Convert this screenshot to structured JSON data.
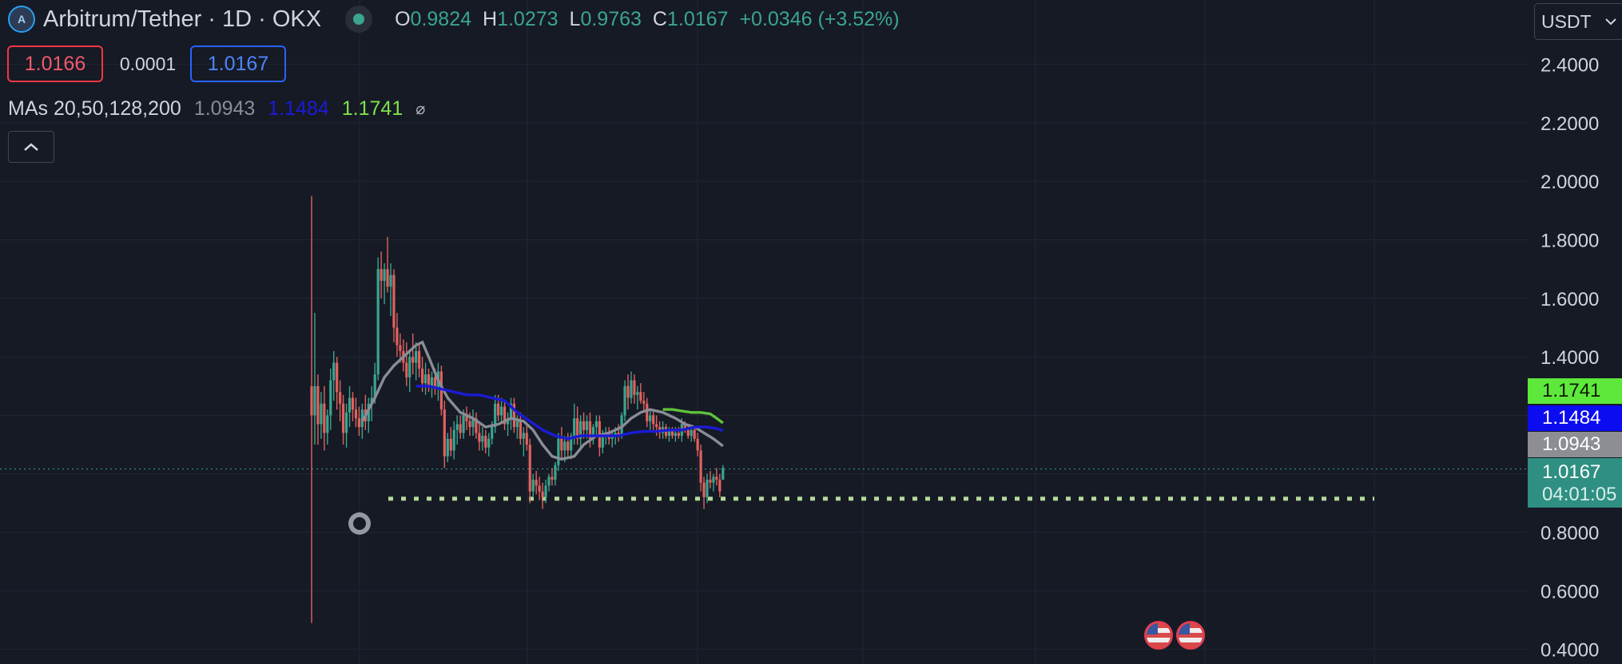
{
  "header": {
    "symbol": "Arbitrum/Tether · 1D · OKX",
    "open_label": "O",
    "open_value": "0.9824",
    "high_label": "H",
    "high_value": "1.0273",
    "low_label": "L",
    "low_value": "0.9763",
    "close_label": "C",
    "close_value": "1.0167",
    "change": "+0.0346 (+3.52%)"
  },
  "quote": {
    "bid": "1.0166",
    "spread": "0.0001",
    "ask": "1.0167"
  },
  "indicator": {
    "label": "MAs 20,50,128,200",
    "ma20_value": "1.0943",
    "ma50_value": "1.1484",
    "ma128_value": "1.1741",
    "visibility_icon": "eye-off-icon"
  },
  "currency_selector": {
    "value": "USDT"
  },
  "price_axis": {
    "ticks": [
      "2.4000",
      "2.2000",
      "2.0000",
      "1.8000",
      "1.6000",
      "1.4000",
      "0.8000",
      "0.6000",
      "0.4000"
    ]
  },
  "price_tags": {
    "ma_green": "1.1741",
    "ma_blue": "1.1484",
    "ma_gray": "1.0943",
    "last_price": "1.0167",
    "countdown": "04:01:05"
  },
  "colors": {
    "background": "#161a25",
    "up": "#3aa590",
    "down": "#e0625e",
    "ma20": "#8a8d96",
    "ma50": "#1b1bd6",
    "ma128": "#5fc33a",
    "support_line": "#b5d99c"
  },
  "icons": {
    "alarm": "alarm-clock-icon",
    "events": "us-flag-icon",
    "collapse": "chevron-up-icon",
    "dropdown": "chevron-down-icon"
  },
  "chart_data": {
    "type": "candlestick",
    "interval": "1D",
    "ylim": [
      0.35,
      2.62
    ],
    "last_price": 1.0167,
    "support_level": 0.915,
    "candles": [
      [
        1.3,
        1.95,
        0.49,
        1.2
      ],
      [
        1.2,
        1.55,
        1.1,
        1.3
      ],
      [
        1.3,
        1.34,
        1.1,
        1.17
      ],
      [
        1.17,
        1.28,
        1.12,
        1.24
      ],
      [
        1.24,
        1.3,
        1.08,
        1.14
      ],
      [
        1.14,
        1.22,
        1.1,
        1.2
      ],
      [
        1.2,
        1.36,
        1.15,
        1.32
      ],
      [
        1.32,
        1.42,
        1.25,
        1.38
      ],
      [
        1.38,
        1.4,
        1.22,
        1.28
      ],
      [
        1.28,
        1.32,
        1.18,
        1.24
      ],
      [
        1.24,
        1.27,
        1.1,
        1.14
      ],
      [
        1.14,
        1.24,
        1.09,
        1.21
      ],
      [
        1.21,
        1.3,
        1.16,
        1.26
      ],
      [
        1.26,
        1.28,
        1.18,
        1.22
      ],
      [
        1.22,
        1.26,
        1.16,
        1.19
      ],
      [
        1.19,
        1.23,
        1.13,
        1.16
      ],
      [
        1.16,
        1.24,
        1.12,
        1.22
      ],
      [
        1.22,
        1.27,
        1.15,
        1.18
      ],
      [
        1.18,
        1.26,
        1.14,
        1.24
      ],
      [
        1.24,
        1.3,
        1.18,
        1.26
      ],
      [
        1.26,
        1.38,
        1.24,
        1.34
      ],
      [
        1.34,
        1.74,
        1.32,
        1.7
      ],
      [
        1.7,
        1.76,
        1.6,
        1.66
      ],
      [
        1.66,
        1.72,
        1.58,
        1.7
      ],
      [
        1.7,
        1.81,
        1.62,
        1.64
      ],
      [
        1.64,
        1.72,
        1.54,
        1.68
      ],
      [
        1.68,
        1.7,
        1.45,
        1.5
      ],
      [
        1.5,
        1.55,
        1.4,
        1.44
      ],
      [
        1.44,
        1.48,
        1.38,
        1.42
      ],
      [
        1.42,
        1.46,
        1.35,
        1.38
      ],
      [
        1.38,
        1.45,
        1.3,
        1.33
      ],
      [
        1.33,
        1.42,
        1.28,
        1.4
      ],
      [
        1.4,
        1.48,
        1.34,
        1.38
      ],
      [
        1.38,
        1.45,
        1.32,
        1.42
      ],
      [
        1.42,
        1.44,
        1.33,
        1.36
      ],
      [
        1.36,
        1.4,
        1.28,
        1.31
      ],
      [
        1.31,
        1.38,
        1.27,
        1.34
      ],
      [
        1.34,
        1.36,
        1.28,
        1.3
      ],
      [
        1.3,
        1.35,
        1.26,
        1.33
      ],
      [
        1.33,
        1.36,
        1.27,
        1.29
      ],
      [
        1.29,
        1.38,
        1.25,
        1.35
      ],
      [
        1.35,
        1.37,
        1.2,
        1.22
      ],
      [
        1.22,
        1.25,
        1.02,
        1.06
      ],
      [
        1.06,
        1.14,
        1.04,
        1.12
      ],
      [
        1.12,
        1.16,
        1.06,
        1.08
      ],
      [
        1.08,
        1.18,
        1.05,
        1.15
      ],
      [
        1.15,
        1.2,
        1.1,
        1.17
      ],
      [
        1.17,
        1.2,
        1.12,
        1.14
      ],
      [
        1.14,
        1.22,
        1.12,
        1.2
      ],
      [
        1.2,
        1.23,
        1.15,
        1.18
      ],
      [
        1.18,
        1.21,
        1.13,
        1.16
      ],
      [
        1.16,
        1.22,
        1.13,
        1.19
      ],
      [
        1.19,
        1.21,
        1.12,
        1.14
      ],
      [
        1.14,
        1.17,
        1.08,
        1.11
      ],
      [
        1.11,
        1.16,
        1.08,
        1.13
      ],
      [
        1.13,
        1.15,
        1.07,
        1.09
      ],
      [
        1.09,
        1.14,
        1.06,
        1.12
      ],
      [
        1.12,
        1.18,
        1.1,
        1.16
      ],
      [
        1.16,
        1.27,
        1.14,
        1.24
      ],
      [
        1.24,
        1.27,
        1.18,
        1.2
      ],
      [
        1.2,
        1.26,
        1.17,
        1.23
      ],
      [
        1.23,
        1.25,
        1.15,
        1.17
      ],
      [
        1.17,
        1.21,
        1.13,
        1.19
      ],
      [
        1.19,
        1.26,
        1.15,
        1.24
      ],
      [
        1.24,
        1.26,
        1.14,
        1.16
      ],
      [
        1.16,
        1.2,
        1.12,
        1.18
      ],
      [
        1.18,
        1.21,
        1.1,
        1.12
      ],
      [
        1.12,
        1.16,
        1.06,
        1.14
      ],
      [
        1.14,
        1.17,
        1.08,
        1.1
      ],
      [
        1.1,
        1.12,
        0.9,
        0.94
      ],
      [
        0.94,
        1.0,
        0.92,
        0.98
      ],
      [
        0.98,
        1.01,
        0.93,
        0.96
      ],
      [
        0.96,
        0.99,
        0.91,
        0.94
      ],
      [
        0.94,
        0.97,
        0.88,
        0.92
      ],
      [
        0.92,
        0.98,
        0.9,
        0.96
      ],
      [
        0.96,
        1.0,
        0.94,
        0.99
      ],
      [
        0.99,
        1.02,
        0.96,
        0.98
      ],
      [
        0.98,
        1.04,
        0.96,
        1.03
      ],
      [
        1.03,
        1.14,
        1.01,
        1.12
      ],
      [
        1.12,
        1.16,
        1.05,
        1.08
      ],
      [
        1.08,
        1.13,
        1.04,
        1.11
      ],
      [
        1.11,
        1.14,
        1.06,
        1.08
      ],
      [
        1.08,
        1.14,
        1.05,
        1.13
      ],
      [
        1.13,
        1.24,
        1.1,
        1.19
      ],
      [
        1.19,
        1.23,
        1.1,
        1.12
      ],
      [
        1.12,
        1.2,
        1.08,
        1.18
      ],
      [
        1.18,
        1.21,
        1.12,
        1.15
      ],
      [
        1.15,
        1.2,
        1.12,
        1.18
      ],
      [
        1.18,
        1.21,
        1.09,
        1.12
      ],
      [
        1.12,
        1.17,
        1.1,
        1.16
      ],
      [
        1.16,
        1.2,
        1.13,
        1.18
      ],
      [
        1.18,
        1.2,
        1.06,
        1.09
      ],
      [
        1.09,
        1.15,
        1.07,
        1.13
      ],
      [
        1.13,
        1.16,
        1.1,
        1.14
      ],
      [
        1.14,
        1.16,
        1.1,
        1.12
      ],
      [
        1.12,
        1.15,
        1.09,
        1.13
      ],
      [
        1.13,
        1.16,
        1.1,
        1.14
      ],
      [
        1.14,
        1.17,
        1.11,
        1.13
      ],
      [
        1.13,
        1.21,
        1.12,
        1.2
      ],
      [
        1.2,
        1.32,
        1.18,
        1.3
      ],
      [
        1.3,
        1.34,
        1.22,
        1.26
      ],
      [
        1.26,
        1.35,
        1.24,
        1.32
      ],
      [
        1.32,
        1.34,
        1.24,
        1.27
      ],
      [
        1.27,
        1.3,
        1.22,
        1.28
      ],
      [
        1.28,
        1.31,
        1.24,
        1.25
      ],
      [
        1.25,
        1.28,
        1.21,
        1.24
      ],
      [
        1.24,
        1.26,
        1.16,
        1.18
      ],
      [
        1.18,
        1.22,
        1.15,
        1.2
      ],
      [
        1.2,
        1.22,
        1.15,
        1.17
      ],
      [
        1.17,
        1.2,
        1.13,
        1.16
      ],
      [
        1.16,
        1.18,
        1.12,
        1.14
      ],
      [
        1.14,
        1.18,
        1.12,
        1.16
      ],
      [
        1.16,
        1.17,
        1.12,
        1.13
      ],
      [
        1.13,
        1.16,
        1.11,
        1.15
      ],
      [
        1.15,
        1.16,
        1.12,
        1.13
      ],
      [
        1.13,
        1.16,
        1.11,
        1.14
      ],
      [
        1.14,
        1.16,
        1.12,
        1.13
      ],
      [
        1.13,
        1.19,
        1.11,
        1.17
      ],
      [
        1.17,
        1.18,
        1.14,
        1.15
      ],
      [
        1.15,
        1.17,
        1.12,
        1.13
      ],
      [
        1.13,
        1.16,
        1.11,
        1.15
      ],
      [
        1.15,
        1.16,
        1.11,
        1.12
      ],
      [
        1.12,
        1.14,
        1.06,
        1.08
      ],
      [
        1.08,
        1.1,
        0.94,
        0.97
      ],
      [
        0.97,
        0.99,
        0.88,
        0.92
      ],
      [
        0.92,
        1.0,
        0.9,
        0.98
      ],
      [
        0.98,
        1.01,
        0.95,
        0.97
      ],
      [
        0.97,
        1.0,
        0.94,
        0.99
      ],
      [
        0.99,
        1.02,
        0.96,
        0.98
      ],
      [
        0.98,
        1.0,
        0.92,
        0.94
      ],
      [
        0.98,
        1.03,
        0.98,
        1.02
      ]
    ],
    "ma_lines": [
      {
        "color": "#8a8d96",
        "points": [
          [
            16,
            1.18
          ],
          [
            20,
            1.26
          ],
          [
            23,
            1.33
          ],
          [
            26,
            1.37
          ],
          [
            28,
            1.39
          ],
          [
            30,
            1.41
          ],
          [
            33,
            1.44
          ],
          [
            35,
            1.45
          ],
          [
            37,
            1.4
          ],
          [
            40,
            1.32
          ],
          [
            43,
            1.26
          ],
          [
            47,
            1.21
          ],
          [
            51,
            1.19
          ],
          [
            55,
            1.16
          ],
          [
            59,
            1.17
          ],
          [
            63,
            1.19
          ],
          [
            67,
            1.18
          ],
          [
            70,
            1.15
          ],
          [
            73,
            1.1
          ],
          [
            76,
            1.06
          ],
          [
            79,
            1.05
          ],
          [
            83,
            1.06
          ],
          [
            86,
            1.1
          ],
          [
            90,
            1.13
          ],
          [
            94,
            1.14
          ],
          [
            98,
            1.16
          ],
          [
            101,
            1.19
          ],
          [
            104,
            1.21
          ],
          [
            107,
            1.22
          ],
          [
            111,
            1.21
          ],
          [
            115,
            1.19
          ],
          [
            118,
            1.17
          ],
          [
            121,
            1.16
          ],
          [
            124,
            1.14
          ],
          [
            127,
            1.12
          ],
          [
            130,
            1.095
          ]
        ]
      },
      {
        "color": "#1b1bd6",
        "points": [
          [
            33,
            1.3
          ],
          [
            37,
            1.3
          ],
          [
            41,
            1.29
          ],
          [
            45,
            1.28
          ],
          [
            49,
            1.27
          ],
          [
            53,
            1.27
          ],
          [
            57,
            1.26
          ],
          [
            61,
            1.25
          ],
          [
            65,
            1.21
          ],
          [
            69,
            1.18
          ],
          [
            73,
            1.15
          ],
          [
            77,
            1.13
          ],
          [
            81,
            1.12
          ],
          [
            85,
            1.13
          ],
          [
            89,
            1.13
          ],
          [
            93,
            1.13
          ],
          [
            97,
            1.13
          ],
          [
            101,
            1.14
          ],
          [
            105,
            1.145
          ],
          [
            109,
            1.145
          ],
          [
            113,
            1.15
          ],
          [
            117,
            1.15
          ],
          [
            121,
            1.16
          ],
          [
            125,
            1.16
          ],
          [
            128,
            1.155
          ],
          [
            130,
            1.148
          ]
        ]
      },
      {
        "color": "#5fc33a",
        "points": [
          [
            111,
            1.22
          ],
          [
            114,
            1.22
          ],
          [
            117,
            1.215
          ],
          [
            120,
            1.21
          ],
          [
            123,
            1.21
          ],
          [
            126,
            1.205
          ],
          [
            128,
            1.19
          ],
          [
            130,
            1.174
          ]
        ]
      }
    ]
  }
}
